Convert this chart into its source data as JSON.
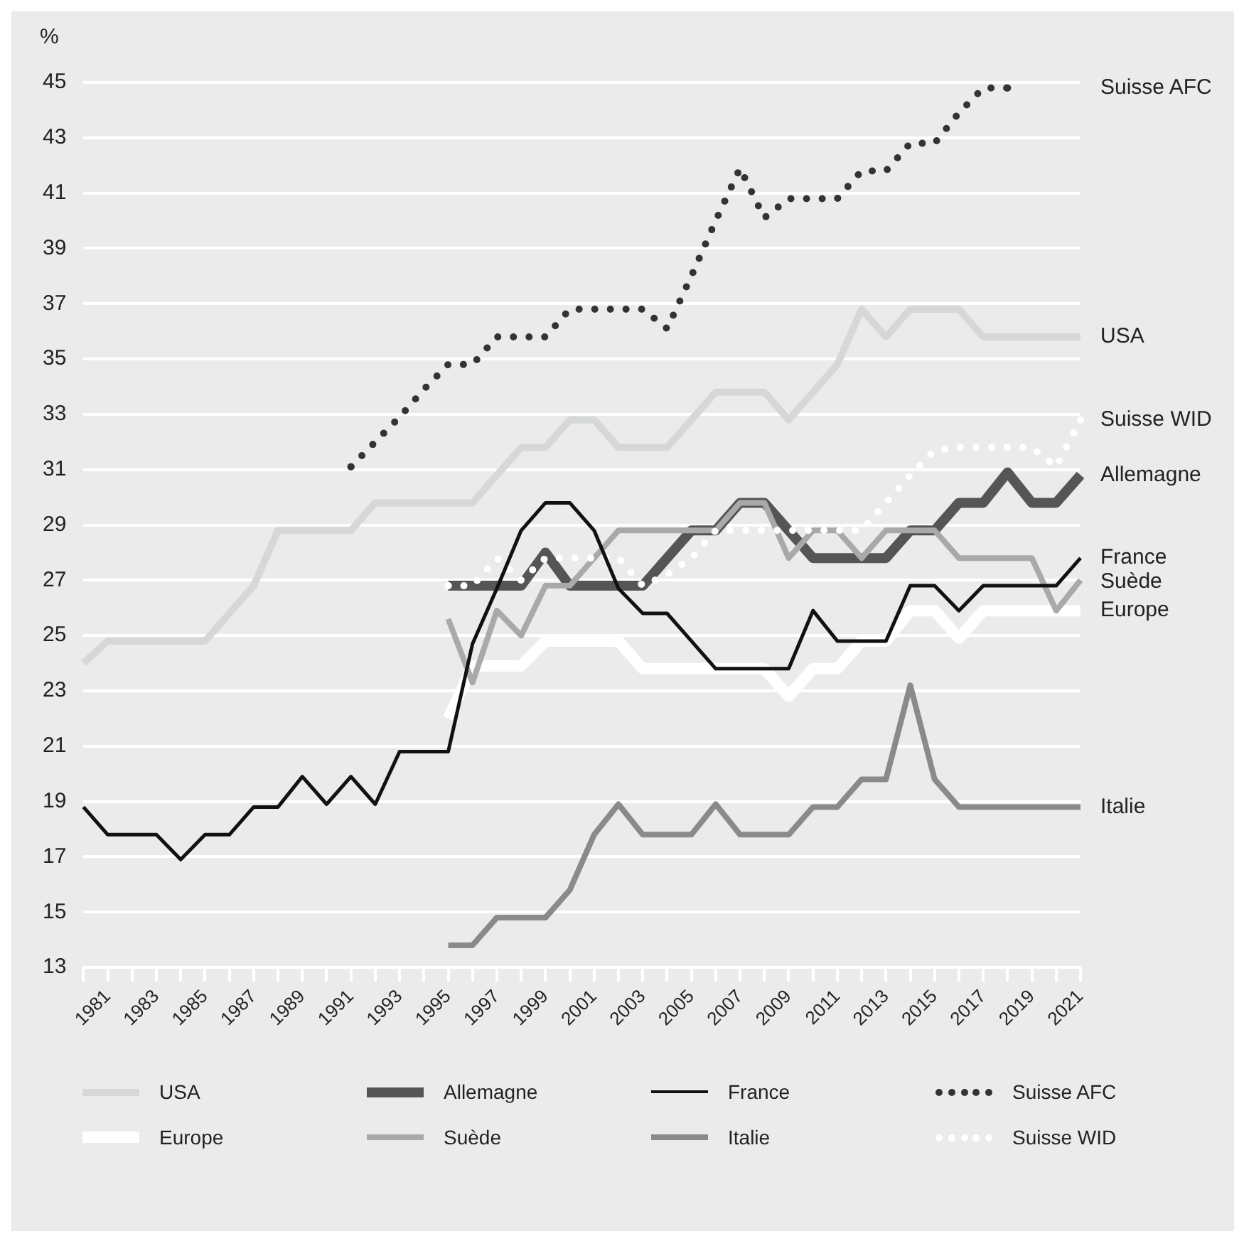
{
  "chart_data": {
    "type": "line",
    "ylabel": "%",
    "categories": [
      null,
      "1981",
      null,
      "1983",
      null,
      "1985",
      null,
      "1987",
      null,
      "1989",
      null,
      "1991",
      null,
      "1993",
      null,
      "1995",
      null,
      "1997",
      null,
      "1999",
      null,
      "2001",
      null,
      "2003",
      null,
      "2005",
      null,
      "2007",
      null,
      "2009",
      null,
      "2011",
      null,
      "2013",
      null,
      "2015",
      null,
      "2017",
      null,
      "2019",
      null,
      "2021"
    ],
    "series": [
      {
        "name": "USA",
        "color": "#d6d7d7",
        "values": [
          24.0,
          24.8,
          24.8,
          24.8,
          24.8,
          24.8,
          25.8,
          26.8,
          28.8,
          28.8,
          28.8,
          28.8,
          29.8,
          29.8,
          29.8,
          29.8,
          29.8,
          30.8,
          31.8,
          31.8,
          32.8,
          32.8,
          31.8,
          31.8,
          31.8,
          32.8,
          33.8,
          33.8,
          33.8,
          32.8,
          33.8,
          34.8,
          36.8,
          35.8,
          36.8,
          36.8,
          36.8,
          35.8,
          35.8,
          35.8,
          35.8,
          35.8
        ]
      },
      {
        "name": "Allemagne",
        "color": "#555555",
        "values": [
          null,
          null,
          null,
          null,
          null,
          null,
          null,
          null,
          null,
          null,
          null,
          null,
          null,
          null,
          null,
          26.8,
          26.8,
          26.8,
          26.8,
          28.0,
          26.8,
          26.8,
          26.8,
          26.8,
          27.8,
          28.8,
          28.8,
          29.8,
          29.8,
          28.8,
          27.8,
          27.8,
          27.8,
          27.8,
          28.8,
          28.8,
          29.8,
          29.8,
          30.9,
          29.8,
          29.8,
          30.8
        ]
      },
      {
        "name": "France",
        "color": "#111111",
        "values": [
          18.8,
          17.8,
          17.8,
          17.8,
          16.9,
          17.8,
          17.8,
          18.8,
          18.8,
          19.9,
          18.9,
          19.9,
          18.9,
          20.8,
          20.8,
          20.8,
          24.7,
          26.7,
          28.8,
          29.8,
          29.8,
          28.8,
          26.7,
          25.8,
          25.8,
          24.8,
          23.8,
          23.8,
          23.8,
          23.8,
          25.9,
          24.8,
          24.8,
          24.8,
          26.8,
          26.8,
          25.9,
          26.8,
          26.8,
          26.8,
          26.8,
          27.8
        ]
      },
      {
        "name": "Suisse AFC",
        "color": "#333333",
        "line_style": "dotted",
        "values": [
          null,
          null,
          null,
          null,
          null,
          null,
          null,
          null,
          null,
          null,
          null,
          31.1,
          32.0,
          32.9,
          33.9,
          34.8,
          34.8,
          35.8,
          35.8,
          35.8,
          36.8,
          36.8,
          36.8,
          36.8,
          36.1,
          38.0,
          40.0,
          41.9,
          40.1,
          40.8,
          40.8,
          40.8,
          41.8,
          41.8,
          42.8,
          42.8,
          43.9,
          44.8,
          44.8,
          null,
          null,
          null
        ]
      },
      {
        "name": "Europe",
        "color": "#ffffff",
        "values": [
          null,
          null,
          null,
          null,
          null,
          null,
          null,
          null,
          null,
          null,
          null,
          null,
          null,
          null,
          null,
          22.0,
          23.9,
          23.9,
          23.9,
          24.8,
          24.8,
          24.8,
          24.8,
          23.8,
          23.8,
          23.8,
          23.8,
          23.8,
          23.8,
          22.8,
          23.8,
          23.8,
          24.8,
          24.8,
          25.9,
          25.9,
          24.9,
          25.9,
          25.9,
          25.9,
          25.9,
          25.9
        ]
      },
      {
        "name": "Suède",
        "color": "#a9a9a9",
        "values": [
          null,
          null,
          null,
          null,
          null,
          null,
          null,
          null,
          null,
          null,
          null,
          null,
          null,
          null,
          null,
          25.6,
          23.3,
          25.9,
          25.0,
          26.8,
          26.8,
          27.8,
          28.8,
          28.8,
          28.8,
          28.8,
          28.8,
          29.8,
          29.8,
          27.8,
          28.8,
          28.8,
          27.8,
          28.8,
          28.8,
          28.8,
          27.8,
          27.8,
          27.8,
          27.8,
          25.9,
          27.0
        ]
      },
      {
        "name": "Italie",
        "color": "#8a8a8a",
        "values": [
          null,
          null,
          null,
          null,
          null,
          null,
          null,
          null,
          null,
          null,
          null,
          null,
          null,
          null,
          null,
          13.8,
          13.8,
          14.8,
          14.8,
          14.8,
          15.8,
          17.8,
          18.9,
          17.8,
          17.8,
          17.8,
          18.9,
          17.8,
          17.8,
          17.8,
          18.8,
          18.8,
          19.8,
          19.8,
          23.2,
          19.8,
          18.8,
          18.8,
          18.8,
          18.8,
          18.8,
          18.8
        ]
      },
      {
        "name": "Suisse WID",
        "color": "#ffffff",
        "line_style": "dotted",
        "values": [
          null,
          null,
          null,
          null,
          null,
          null,
          null,
          null,
          null,
          null,
          null,
          null,
          null,
          null,
          null,
          26.8,
          26.8,
          27.8,
          27.0,
          27.8,
          27.8,
          27.8,
          27.8,
          26.8,
          27.2,
          27.8,
          28.8,
          28.8,
          28.8,
          28.8,
          28.8,
          28.8,
          28.8,
          29.8,
          30.8,
          31.7,
          31.8,
          31.8,
          31.8,
          31.8,
          31.1,
          32.8
        ]
      }
    ],
    "ylim": [
      13,
      45
    ],
    "yticks": [
      13,
      15,
      17,
      19,
      21,
      23,
      25,
      27,
      29,
      31,
      33,
      35,
      37,
      39,
      41,
      43,
      45
    ],
    "grid": "y",
    "legend": "bottom",
    "marker": "none",
    "line_style": "solid"
  }
}
